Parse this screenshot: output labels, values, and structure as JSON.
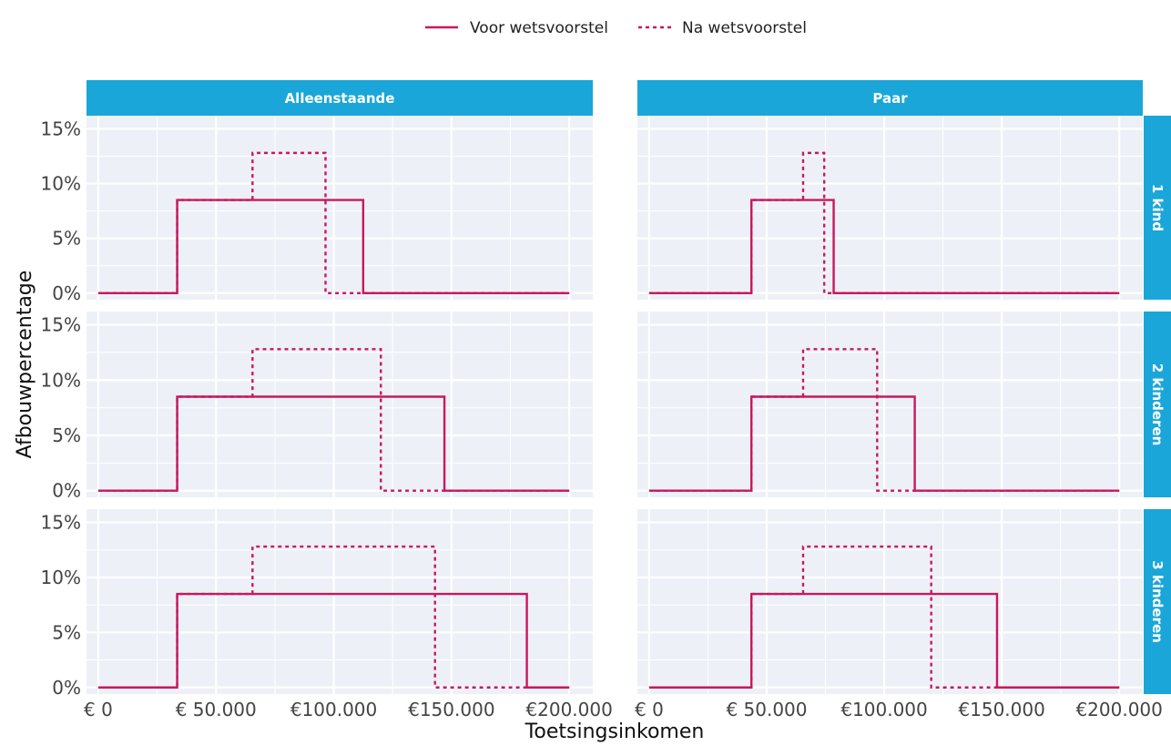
{
  "chart_data": {
    "type": "line",
    "xlabel": "Toetsingsinkomen",
    "ylabel": "Afbouwpercentage",
    "legend": {
      "position": "top",
      "entries": [
        {
          "name": "Voor wetsvoorstel",
          "style": "solid"
        },
        {
          "name": "Na wetsvoorstel",
          "style": "dashed"
        }
      ]
    },
    "colors": {
      "line": "#C8185F",
      "strip": "#1AA6D8",
      "panel_bg": "#EDF0F7",
      "grid": "#FFFFFF"
    },
    "columns": [
      "Alleenstaande",
      "Paar"
    ],
    "rows": [
      "1 kind",
      "2 kinderen",
      "3 kinderen"
    ],
    "x_ticks": [
      {
        "value": 0,
        "label": "€ 0"
      },
      {
        "value": 50000,
        "label": "€ 50.000"
      },
      {
        "value": 100000,
        "label": "€100.000"
      },
      {
        "value": 150000,
        "label": "€150.000"
      },
      {
        "value": 200000,
        "label": "€200.000"
      }
    ],
    "y_ticks": [
      {
        "value": 0,
        "label": "0%"
      },
      {
        "value": 5,
        "label": "5%"
      },
      {
        "value": 10,
        "label": "10%"
      },
      {
        "value": 15,
        "label": "15%"
      }
    ],
    "xlim": [
      -5000,
      210000
    ],
    "ylim": [
      -0.6,
      16.2
    ],
    "x_domain": [
      0,
      200000
    ],
    "panels": [
      {
        "col": 0,
        "row": 0,
        "series": [
          {
            "name": "Voor wetsvoorstel",
            "steps": [
              {
                "from": 33500,
                "to": 112500,
                "value": 8.5
              }
            ]
          },
          {
            "name": "Na wetsvoorstel",
            "steps": [
              {
                "from": 33500,
                "to": 65500,
                "value": 8.5
              },
              {
                "from": 65500,
                "to": 96500,
                "value": 12.8
              }
            ]
          }
        ]
      },
      {
        "col": 1,
        "row": 0,
        "series": [
          {
            "name": "Voor wetsvoorstel",
            "steps": [
              {
                "from": 43500,
                "to": 78500,
                "value": 8.5
              }
            ]
          },
          {
            "name": "Na wetsvoorstel",
            "steps": [
              {
                "from": 43500,
                "to": 65500,
                "value": 8.5
              },
              {
                "from": 65500,
                "to": 74500,
                "value": 12.8
              }
            ]
          }
        ]
      },
      {
        "col": 0,
        "row": 1,
        "series": [
          {
            "name": "Voor wetsvoorstel",
            "steps": [
              {
                "from": 33500,
                "to": 147000,
                "value": 8.5
              }
            ]
          },
          {
            "name": "Na wetsvoorstel",
            "steps": [
              {
                "from": 33500,
                "to": 65500,
                "value": 8.5
              },
              {
                "from": 65500,
                "to": 120000,
                "value": 12.8
              }
            ]
          }
        ]
      },
      {
        "col": 1,
        "row": 1,
        "series": [
          {
            "name": "Voor wetsvoorstel",
            "steps": [
              {
                "from": 43500,
                "to": 113000,
                "value": 8.5
              }
            ]
          },
          {
            "name": "Na wetsvoorstel",
            "steps": [
              {
                "from": 43500,
                "to": 65500,
                "value": 8.5
              },
              {
                "from": 65500,
                "to": 97000,
                "value": 12.8
              }
            ]
          }
        ]
      },
      {
        "col": 0,
        "row": 2,
        "series": [
          {
            "name": "Voor wetsvoorstel",
            "steps": [
              {
                "from": 33500,
                "to": 182000,
                "value": 8.5
              }
            ]
          },
          {
            "name": "Na wetsvoorstel",
            "steps": [
              {
                "from": 33500,
                "to": 65500,
                "value": 8.5
              },
              {
                "from": 65500,
                "to": 143000,
                "value": 12.8
              }
            ]
          }
        ]
      },
      {
        "col": 1,
        "row": 2,
        "series": [
          {
            "name": "Voor wetsvoorstel",
            "steps": [
              {
                "from": 43500,
                "to": 148000,
                "value": 8.5
              }
            ]
          },
          {
            "name": "Na wetsvoorstel",
            "steps": [
              {
                "from": 43500,
                "to": 65500,
                "value": 8.5
              },
              {
                "from": 65500,
                "to": 120000,
                "value": 12.8
              }
            ]
          }
        ]
      }
    ]
  }
}
